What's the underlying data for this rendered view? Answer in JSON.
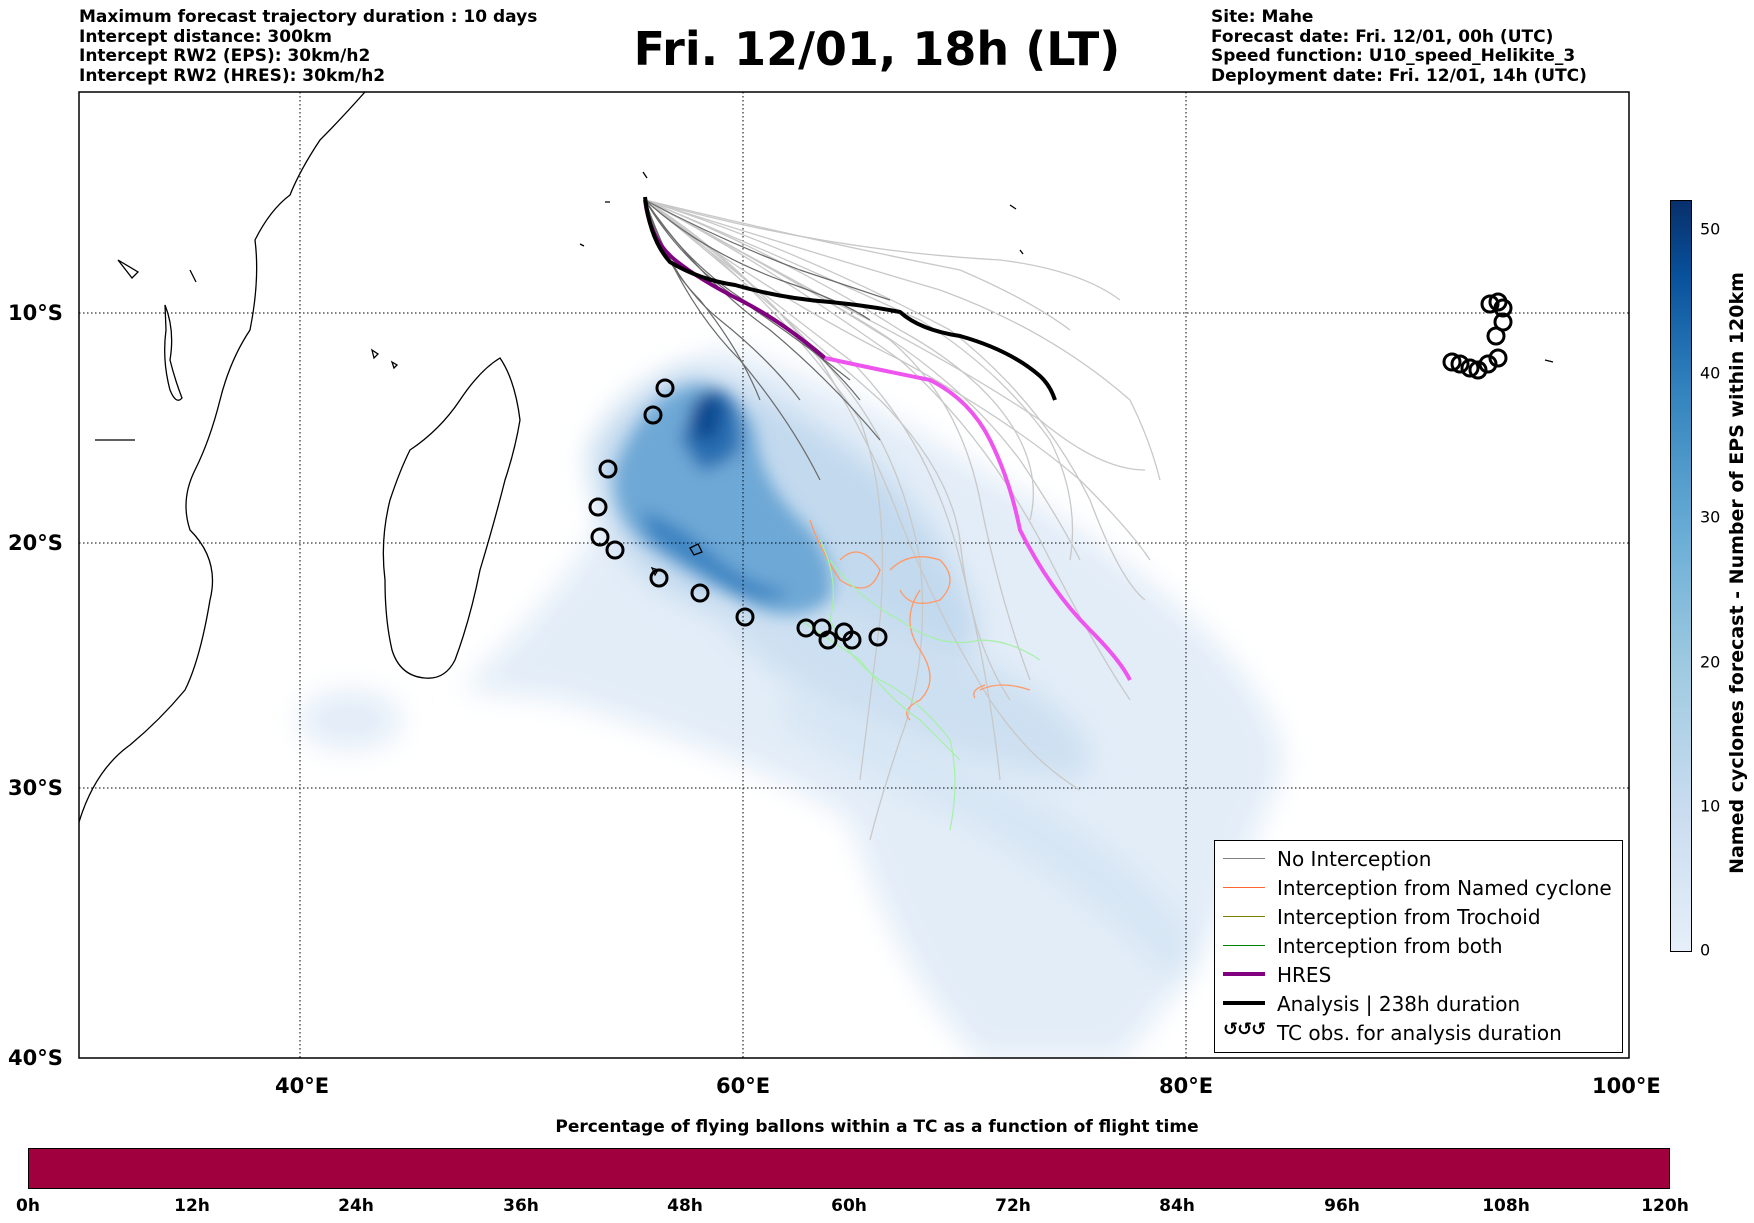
{
  "header_left": [
    "Maximum forecast trajectory duration : 10 days",
    "Intercept distance: 300km",
    "Intercept RW2 (EPS):  30km/h2",
    "Intercept RW2 (HRES): 30km/h2"
  ],
  "title": "Fri. 12/01, 18h (LT)",
  "header_right": [
    "Site: Mahe",
    "Forecast date: Fri. 12/01, 00h (UTC)",
    "Speed function: U10_speed_Helikite_3",
    "Deployment date: Fri. 12/01, 14h (UTC)"
  ],
  "map": {
    "lon_range": [
      30,
      100
    ],
    "lat_range": [
      -40,
      0
    ],
    "lon_ticks": [
      "40°E",
      "60°E",
      "80°E",
      "100°E"
    ],
    "lat_ticks": [
      "10°S",
      "20°S",
      "30°S",
      "40°S"
    ],
    "grid": true,
    "site": {
      "name": "Mahe",
      "lon": 55.5,
      "lat": -4.6
    }
  },
  "legend": {
    "items": [
      {
        "label": "No Interception",
        "color": "#808080",
        "style": "thin"
      },
      {
        "label": "Interception from Named cyclone",
        "color": "#ff6633",
        "style": "thin"
      },
      {
        "label": "Interception from Trochoid",
        "color": "#808000",
        "style": "thin"
      },
      {
        "label": "Interception from both",
        "color": "#008000",
        "style": "thin"
      },
      {
        "label": "HRES",
        "color": "#800080",
        "style": "thick"
      },
      {
        "label": "Analysis | 238h duration",
        "color": "#000000",
        "style": "thick"
      },
      {
        "label": "TC obs. for analysis duration",
        "color": "#000000",
        "style": "symbol",
        "symbol": "ઠઠઠ"
      }
    ]
  },
  "colorbar": {
    "label": "Named cyclones forecast - Number of EPS within 120km",
    "ticks": [
      "0",
      "10",
      "20",
      "30",
      "40",
      "50"
    ],
    "range": [
      0,
      52
    ]
  },
  "bottom": {
    "title": "Percentage of flying ballons within a TC as a function of flight time",
    "ticks": [
      "0h",
      "12h",
      "24h",
      "36h",
      "48h",
      "60h",
      "72h",
      "84h",
      "96h",
      "108h",
      "120h"
    ],
    "color": "#a0003e"
  },
  "tracks": {
    "analysis": [
      [
        55.5,
        -4.6
      ],
      [
        55.7,
        -6.2
      ],
      [
        56.4,
        -7.3
      ],
      [
        57.5,
        -7.8
      ],
      [
        59,
        -8.3
      ],
      [
        61,
        -8.9
      ],
      [
        63,
        -9.2
      ],
      [
        65,
        -9.5
      ],
      [
        67,
        -9.6
      ],
      [
        69,
        -10.1
      ],
      [
        71,
        -11
      ],
      [
        73,
        -12.5
      ],
      [
        74.2,
        -13.5
      ]
    ],
    "hres": [
      [
        55.5,
        -4.6
      ],
      [
        55.8,
        -6.3
      ],
      [
        56.8,
        -7.6
      ],
      [
        58.2,
        -8.5
      ],
      [
        60,
        -9.6
      ],
      [
        62,
        -10.5
      ],
      [
        64,
        -11.3
      ],
      [
        66,
        -12
      ],
      [
        68,
        -12.6
      ],
      [
        70,
        -14
      ],
      [
        71.5,
        -16
      ],
      [
        72.5,
        -18.5
      ],
      [
        73.5,
        -21
      ],
      [
        75,
        -23
      ],
      [
        76.5,
        -24.8
      ],
      [
        77.5,
        -25.5
      ]
    ],
    "tc_obs": [
      [
        56.5,
        -13.2
      ],
      [
        56,
        -14.3
      ],
      [
        54.4,
        -16.8
      ],
      [
        53.6,
        -18.5
      ],
      [
        53.7,
        -19.8
      ],
      [
        54.4,
        -20.3
      ],
      [
        56.3,
        -21.4
      ],
      [
        58.1,
        -22
      ],
      [
        60.1,
        -23
      ],
      [
        62.9,
        -23.5
      ],
      [
        63.5,
        -23.5
      ],
      [
        63.8,
        -23.8
      ],
      [
        64.2,
        -23.6
      ],
      [
        65,
        -23.8
      ],
      [
        66.2,
        -23.7
      ],
      [
        93.5,
        -12
      ],
      [
        93.8,
        -12.1
      ],
      [
        94.3,
        -12.2
      ],
      [
        94.5,
        -12.4
      ],
      [
        94.8,
        -12.3
      ],
      [
        95.2,
        -12
      ],
      [
        94.6,
        -9.8
      ],
      [
        95,
        -9.7
      ],
      [
        95.3,
        -9.9
      ],
      [
        95.5,
        -10.4
      ],
      [
        95.2,
        -10.8
      ]
    ]
  }
}
